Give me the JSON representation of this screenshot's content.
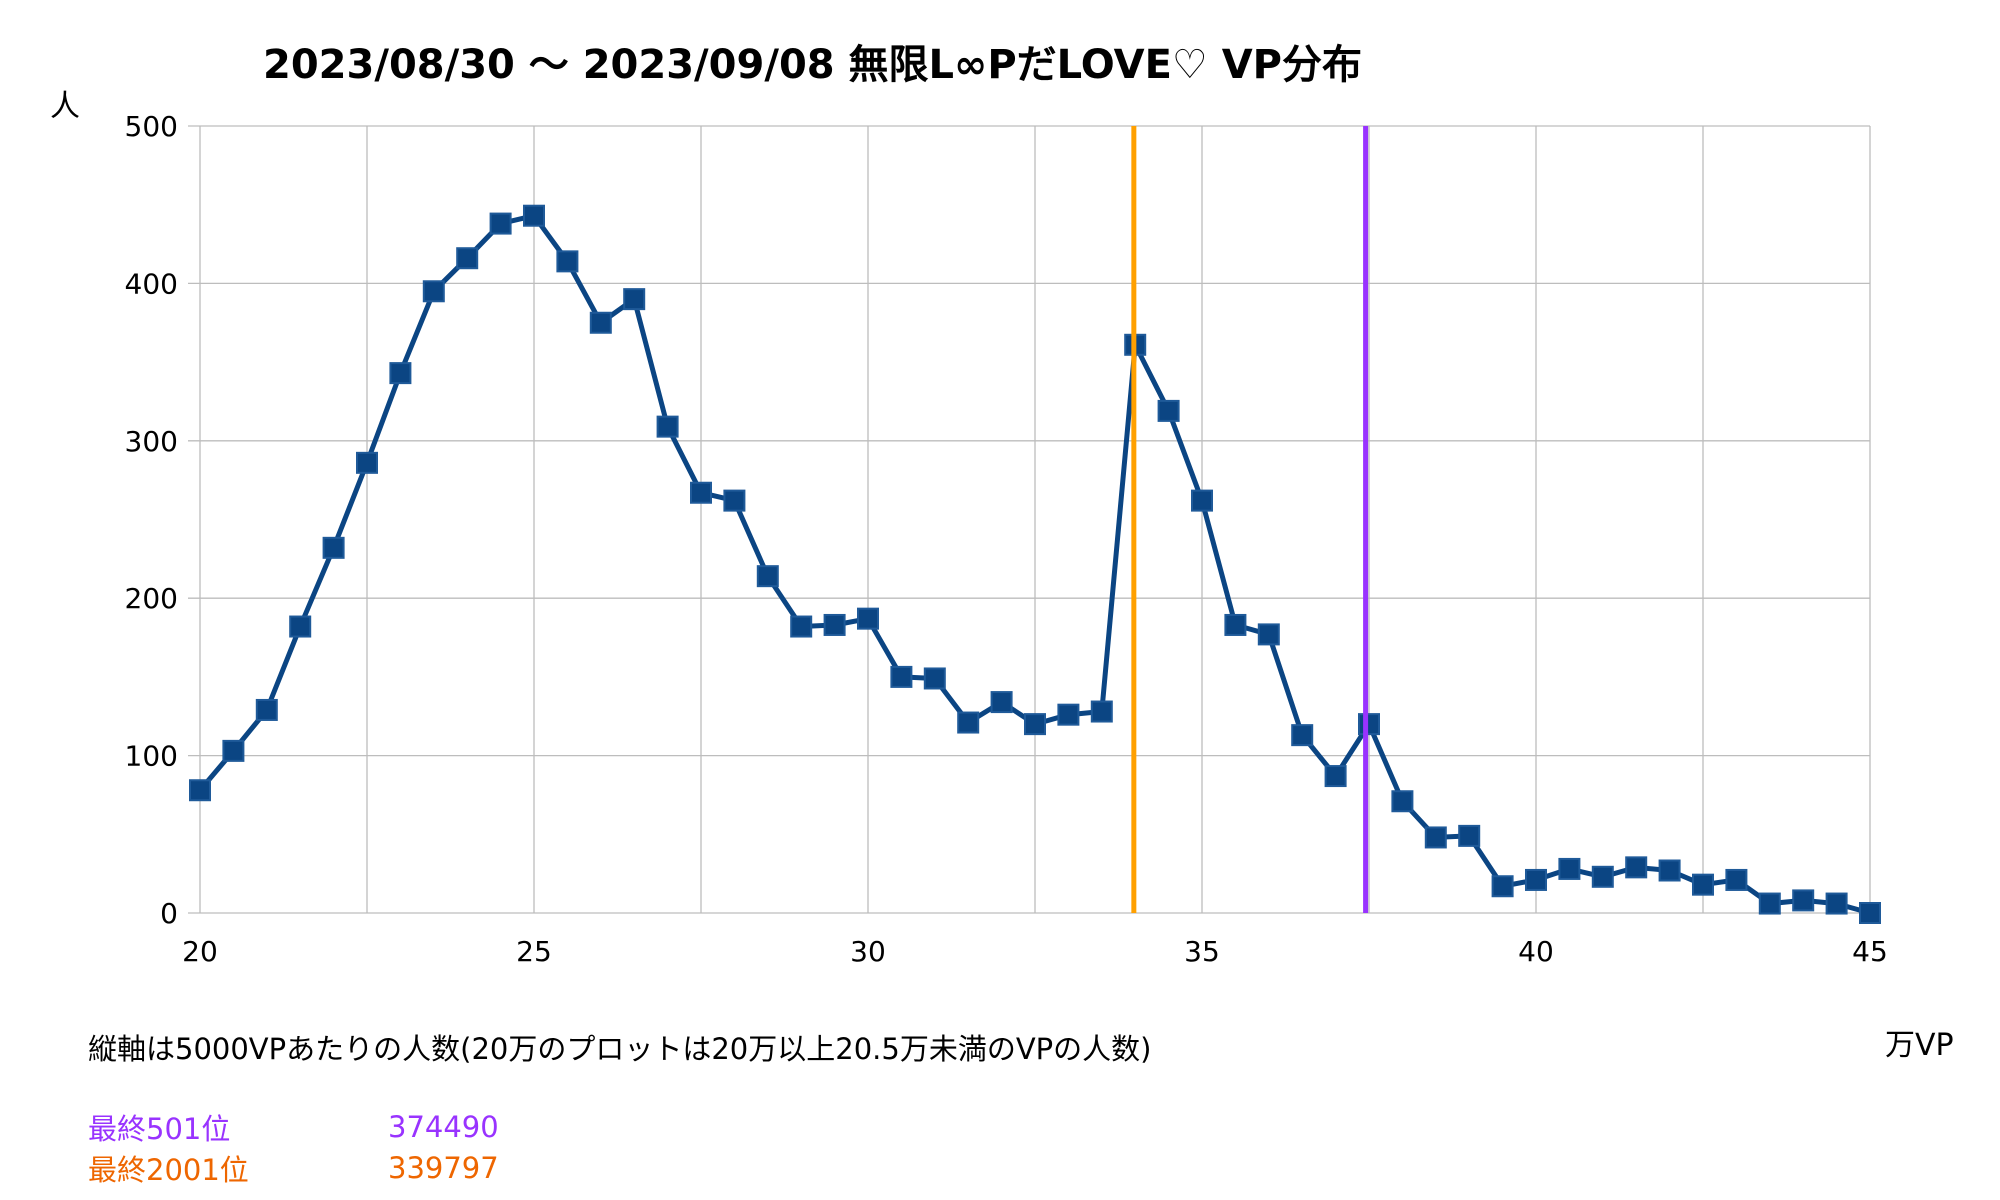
{
  "chart_data": {
    "type": "line",
    "title": "2023/08/30 ～ 2023/09/08 無限L∞PだLOVE♡ VP分布",
    "ylabel": "人",
    "xlabel": "万VP",
    "xlim": [
      20,
      45
    ],
    "ylim": [
      0,
      500
    ],
    "x_ticks": [
      20,
      25,
      30,
      35,
      40,
      45
    ],
    "y_ticks": [
      0,
      100,
      200,
      300,
      400,
      500
    ],
    "grid": true,
    "series": [
      {
        "color": "#0b4583",
        "marker": "square",
        "points": [
          [
            20,
            78
          ],
          [
            20.5,
            103
          ],
          [
            21,
            129
          ],
          [
            21.5,
            182
          ],
          [
            22,
            232
          ],
          [
            22.5,
            286
          ],
          [
            23,
            343
          ],
          [
            23.5,
            395
          ],
          [
            24,
            416
          ],
          [
            24.5,
            438
          ],
          [
            25,
            443
          ],
          [
            25.5,
            414
          ],
          [
            26,
            375
          ],
          [
            26.5,
            390
          ],
          [
            27,
            309
          ],
          [
            27.5,
            267
          ],
          [
            28,
            262
          ],
          [
            28.5,
            214
          ],
          [
            29,
            182
          ],
          [
            29.5,
            183
          ],
          [
            30,
            187
          ],
          [
            30.5,
            150
          ],
          [
            31,
            149
          ],
          [
            31.5,
            121
          ],
          [
            32,
            134
          ],
          [
            32.5,
            120
          ],
          [
            33,
            126
          ],
          [
            33.5,
            128
          ],
          [
            34,
            361
          ],
          [
            34.5,
            319
          ],
          [
            35,
            262
          ],
          [
            35.5,
            183
          ],
          [
            36,
            177
          ],
          [
            36.5,
            113
          ],
          [
            37,
            87
          ],
          [
            37.5,
            120
          ],
          [
            38,
            71
          ],
          [
            38.5,
            48
          ],
          [
            39,
            49
          ],
          [
            39.5,
            17
          ],
          [
            40,
            21
          ],
          [
            40.5,
            28
          ],
          [
            41,
            23
          ],
          [
            41.5,
            29
          ],
          [
            42,
            27
          ],
          [
            42.5,
            18
          ],
          [
            43,
            21
          ],
          [
            43.5,
            6
          ],
          [
            44,
            8
          ],
          [
            44.5,
            6
          ],
          [
            45,
            0
          ]
        ]
      }
    ],
    "reference_lines": [
      {
        "x": 33.9797,
        "color": "#ffa000"
      },
      {
        "x": 37.449,
        "color": "#9933ff"
      }
    ]
  },
  "footnote": "縦軸は5000VPあたりの人数(20万のプロットは20万以上20.5万未満のVPの人数)",
  "legend_notes": [
    {
      "label": "最終501位",
      "value": "374490",
      "color": "#9933ff"
    },
    {
      "label": "最終2001位",
      "value": "339797",
      "color": "#ee6600"
    }
  ]
}
